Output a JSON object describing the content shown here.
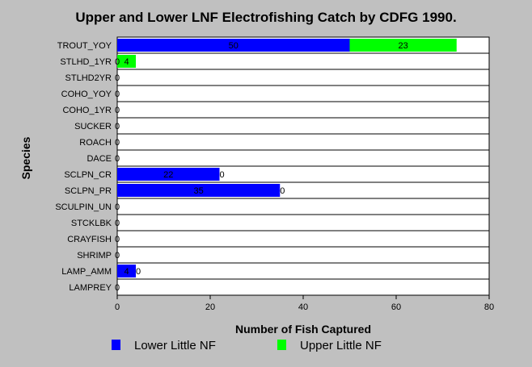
{
  "chart_data": {
    "type": "bar",
    "orientation": "horizontal",
    "stacked": true,
    "title": "Upper and Lower LNF Electrofishing Catch by CDFG 1990.",
    "xlabel": "Number of Fish Captured",
    "ylabel": "Species",
    "xlim": [
      0,
      80
    ],
    "xticks": [
      0,
      20,
      40,
      60,
      80
    ],
    "grid": "horizontal",
    "legend_position": "bottom",
    "categories": [
      "TROUT_YOY",
      "STLHD_1YR",
      "STLHD2YR",
      "COHO_YOY",
      "COHO_1YR",
      "SUCKER",
      "ROACH",
      "DACE",
      "SCLPN_CR",
      "SCLPN_PR",
      "SCULPIN_UN",
      "STCKLBK",
      "CRAYFISH",
      "SHRIMP",
      "LAMP_AMM",
      "LAMPREY"
    ],
    "series": [
      {
        "name": "Lower Little NF",
        "color": "#0000ff",
        "values": [
          50,
          0,
          0,
          0,
          0,
          0,
          0,
          0,
          22,
          35,
          0,
          0,
          0,
          0,
          4,
          0
        ]
      },
      {
        "name": "Upper Little NF",
        "color": "#00ff00",
        "values": [
          23,
          4,
          0,
          0,
          0,
          0,
          0,
          0,
          0,
          0,
          0,
          0,
          0,
          0,
          0,
          0
        ]
      }
    ],
    "data_labels": [
      [
        "50",
        "0",
        "0",
        "0",
        "0",
        "0",
        "0",
        "0",
        "22",
        "35",
        "0",
        "0",
        "0",
        "0",
        "4",
        "0"
      ],
      [
        "23",
        "4",
        "",
        "",
        "",
        "",
        "",
        "",
        "0",
        "0",
        "",
        "",
        "",
        "",
        "0",
        ""
      ]
    ]
  }
}
